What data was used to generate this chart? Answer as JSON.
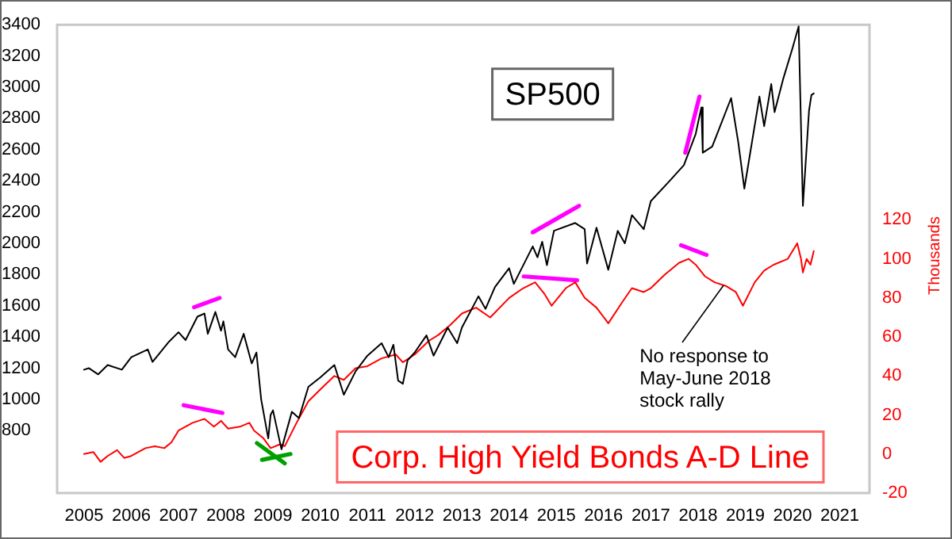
{
  "chart_data": {
    "type": "line",
    "y2label": "Thousands",
    "xlim": [
      2004.43,
      2021.63
    ],
    "xticks": [
      2005,
      2006,
      2007,
      2008,
      2009,
      2010,
      2011,
      2012,
      2013,
      2014,
      2015,
      2016,
      2017,
      2018,
      2019,
      2020,
      2021
    ],
    "ylim": [
      400,
      3400
    ],
    "yticks": [
      800,
      1000,
      1200,
      1400,
      1600,
      1800,
      2000,
      2200,
      2400,
      2600,
      2800,
      3000,
      3200,
      3400
    ],
    "y2lim": [
      -20,
      220
    ],
    "y2ticks": [
      -20,
      0,
      20,
      40,
      60,
      80,
      100,
      120
    ],
    "annotations": [
      "No response to May-June 2018 stock rally"
    ],
    "series": [
      {
        "name": "SP500",
        "color": "#000000",
        "x": [
          2005.0,
          2005.1,
          2005.3,
          2005.5,
          2005.8,
          2006.0,
          2006.35,
          2006.45,
          2006.8,
          2007.0,
          2007.15,
          2007.4,
          2007.55,
          2007.62,
          2007.78,
          2007.9,
          2007.95,
          2008.05,
          2008.2,
          2008.38,
          2008.55,
          2008.65,
          2008.75,
          2008.9,
          2008.95,
          2009.0,
          2009.18,
          2009.4,
          2009.55,
          2009.75,
          2010.0,
          2010.3,
          2010.5,
          2010.75,
          2011.0,
          2011.3,
          2011.45,
          2011.55,
          2011.65,
          2011.75,
          2011.85,
          2012.0,
          2012.25,
          2012.4,
          2012.7,
          2012.9,
          2013.0,
          2013.35,
          2013.5,
          2013.7,
          2014.0,
          2014.1,
          2014.5,
          2014.6,
          2014.7,
          2014.8,
          2014.95,
          2015.4,
          2015.6,
          2015.65,
          2015.85,
          2016.1,
          2016.3,
          2016.45,
          2016.6,
          2016.85,
          2017.0,
          2017.4,
          2017.7,
          2017.95,
          2018.07,
          2018.1,
          2018.3,
          2018.7,
          2018.85,
          2018.98,
          2019.3,
          2019.4,
          2019.55,
          2019.62,
          2019.8,
          2020.0,
          2020.13,
          2020.22,
          2020.35,
          2020.4,
          2020.45
        ],
        "values": [
          1190,
          1200,
          1160,
          1220,
          1190,
          1270,
          1320,
          1240,
          1370,
          1430,
          1380,
          1530,
          1550,
          1420,
          1560,
          1440,
          1500,
          1320,
          1270,
          1420,
          1230,
          1300,
          1000,
          750,
          900,
          930,
          680,
          920,
          880,
          1080,
          1140,
          1220,
          1030,
          1180,
          1280,
          1360,
          1270,
          1350,
          1120,
          1100,
          1250,
          1300,
          1410,
          1280,
          1460,
          1360,
          1460,
          1660,
          1580,
          1720,
          1840,
          1740,
          1980,
          1910,
          2010,
          1860,
          2080,
          2130,
          2090,
          1870,
          2100,
          1830,
          2080,
          2000,
          2180,
          2090,
          2270,
          2400,
          2500,
          2700,
          2870,
          2580,
          2620,
          2930,
          2650,
          2350,
          2940,
          2750,
          3020,
          2840,
          3050,
          3250,
          3390,
          2240,
          2850,
          2950,
          2960
        ]
      },
      {
        "name": "Corp. High Yield Bonds A-D Line",
        "color": "#ff0000",
        "axis": "y2",
        "x": [
          2005.0,
          2005.2,
          2005.35,
          2005.5,
          2005.7,
          2005.85,
          2006.0,
          2006.3,
          2006.5,
          2006.7,
          2006.85,
          2007.0,
          2007.3,
          2007.55,
          2007.75,
          2007.9,
          2008.05,
          2008.3,
          2008.5,
          2008.6,
          2008.8,
          2008.95,
          2009.15,
          2009.25,
          2009.5,
          2009.75,
          2010.0,
          2010.3,
          2010.5,
          2010.75,
          2011.0,
          2011.3,
          2011.6,
          2011.75,
          2012.0,
          2012.3,
          2012.5,
          2012.75,
          2013.0,
          2013.3,
          2013.6,
          2014.0,
          2014.3,
          2014.55,
          2014.75,
          2014.9,
          2015.2,
          2015.4,
          2015.6,
          2015.85,
          2016.1,
          2016.4,
          2016.6,
          2016.85,
          2017.0,
          2017.3,
          2017.6,
          2017.8,
          2017.95,
          2018.15,
          2018.35,
          2018.6,
          2018.8,
          2018.95,
          2019.2,
          2019.4,
          2019.6,
          2019.9,
          2020.1,
          2020.18,
          2020.22,
          2020.3,
          2020.38,
          2020.45
        ],
        "values": [
          0,
          1,
          -4,
          -1,
          2,
          -2,
          -1,
          3,
          4,
          3,
          6,
          12,
          16,
          18,
          14,
          17,
          13,
          14,
          16,
          12,
          8,
          3,
          5,
          4,
          16,
          27,
          33,
          40,
          38,
          44,
          45,
          49,
          51,
          47,
          51,
          58,
          61,
          66,
          72,
          75,
          70,
          80,
          85,
          88,
          82,
          76,
          85,
          88,
          80,
          75,
          67,
          78,
          85,
          83,
          85,
          92,
          98,
          100,
          97,
          91,
          88,
          86,
          83,
          76,
          88,
          94,
          97,
          100,
          108,
          100,
          93,
          100,
          97,
          104
        ]
      },
      {
        "color": "#ff00ff",
        "x": [
          2007.33,
          2007.87
        ],
        "values": [
          1590,
          1650
        ]
      },
      {
        "color": "#ff00ff",
        "axis": "y2",
        "x": [
          2007.11,
          2007.93
        ],
        "values": [
          25,
          21
        ]
      },
      {
        "color": "#00a000",
        "x": [
          2008.66,
          2009.25
        ],
        "values": [
          720,
          590
        ]
      },
      {
        "color": "#00a000",
        "axis": "y2",
        "x": [
          2008.77,
          2009.37
        ],
        "values": [
          -3,
          0
        ]
      },
      {
        "color": "#ff00ff",
        "x": [
          2014.5,
          2015.48
        ],
        "values": [
          2070,
          2240
        ]
      },
      {
        "color": "#ff00ff",
        "axis": "y2",
        "x": [
          2014.31,
          2015.44
        ],
        "values": [
          91,
          89
        ]
      },
      {
        "color": "#ff00ff",
        "x": [
          2017.73,
          2018.03
        ],
        "values": [
          2580,
          2940
        ]
      },
      {
        "color": "#ff00ff",
        "axis": "y2",
        "x": [
          2017.64,
          2018.18
        ],
        "values": [
          107,
          102
        ]
      }
    ]
  }
}
